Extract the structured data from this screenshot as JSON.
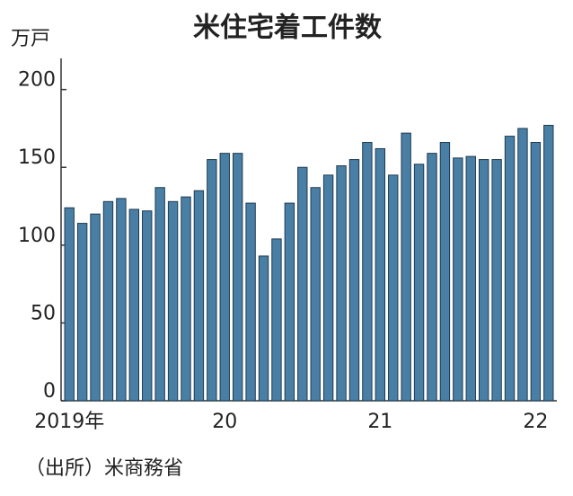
{
  "chart_data": {
    "type": "bar",
    "title": "米住宅着工件数",
    "y_unit": "万戸",
    "source": "（出所）米商務省",
    "categories": [
      "2019年",
      null,
      null,
      null,
      null,
      null,
      null,
      null,
      null,
      null,
      null,
      null,
      "20",
      null,
      null,
      null,
      null,
      null,
      null,
      null,
      null,
      null,
      null,
      null,
      "21",
      null,
      null,
      null,
      null,
      null,
      null,
      null,
      null,
      null,
      null,
      null,
      "22",
      null
    ],
    "values": [
      124,
      114,
      120,
      128,
      130,
      123,
      122,
      137,
      128,
      131,
      135,
      155,
      159,
      159,
      127,
      93,
      104,
      127,
      150,
      137,
      145,
      151,
      155,
      166,
      162,
      145,
      172,
      152,
      159,
      166,
      156,
      157,
      155,
      155,
      170,
      175,
      166,
      177
    ],
    "color": "#4a7fa5",
    "ylim": [
      0,
      220
    ],
    "yticks": [
      0,
      50,
      100,
      150,
      200
    ],
    "grid": false
  }
}
